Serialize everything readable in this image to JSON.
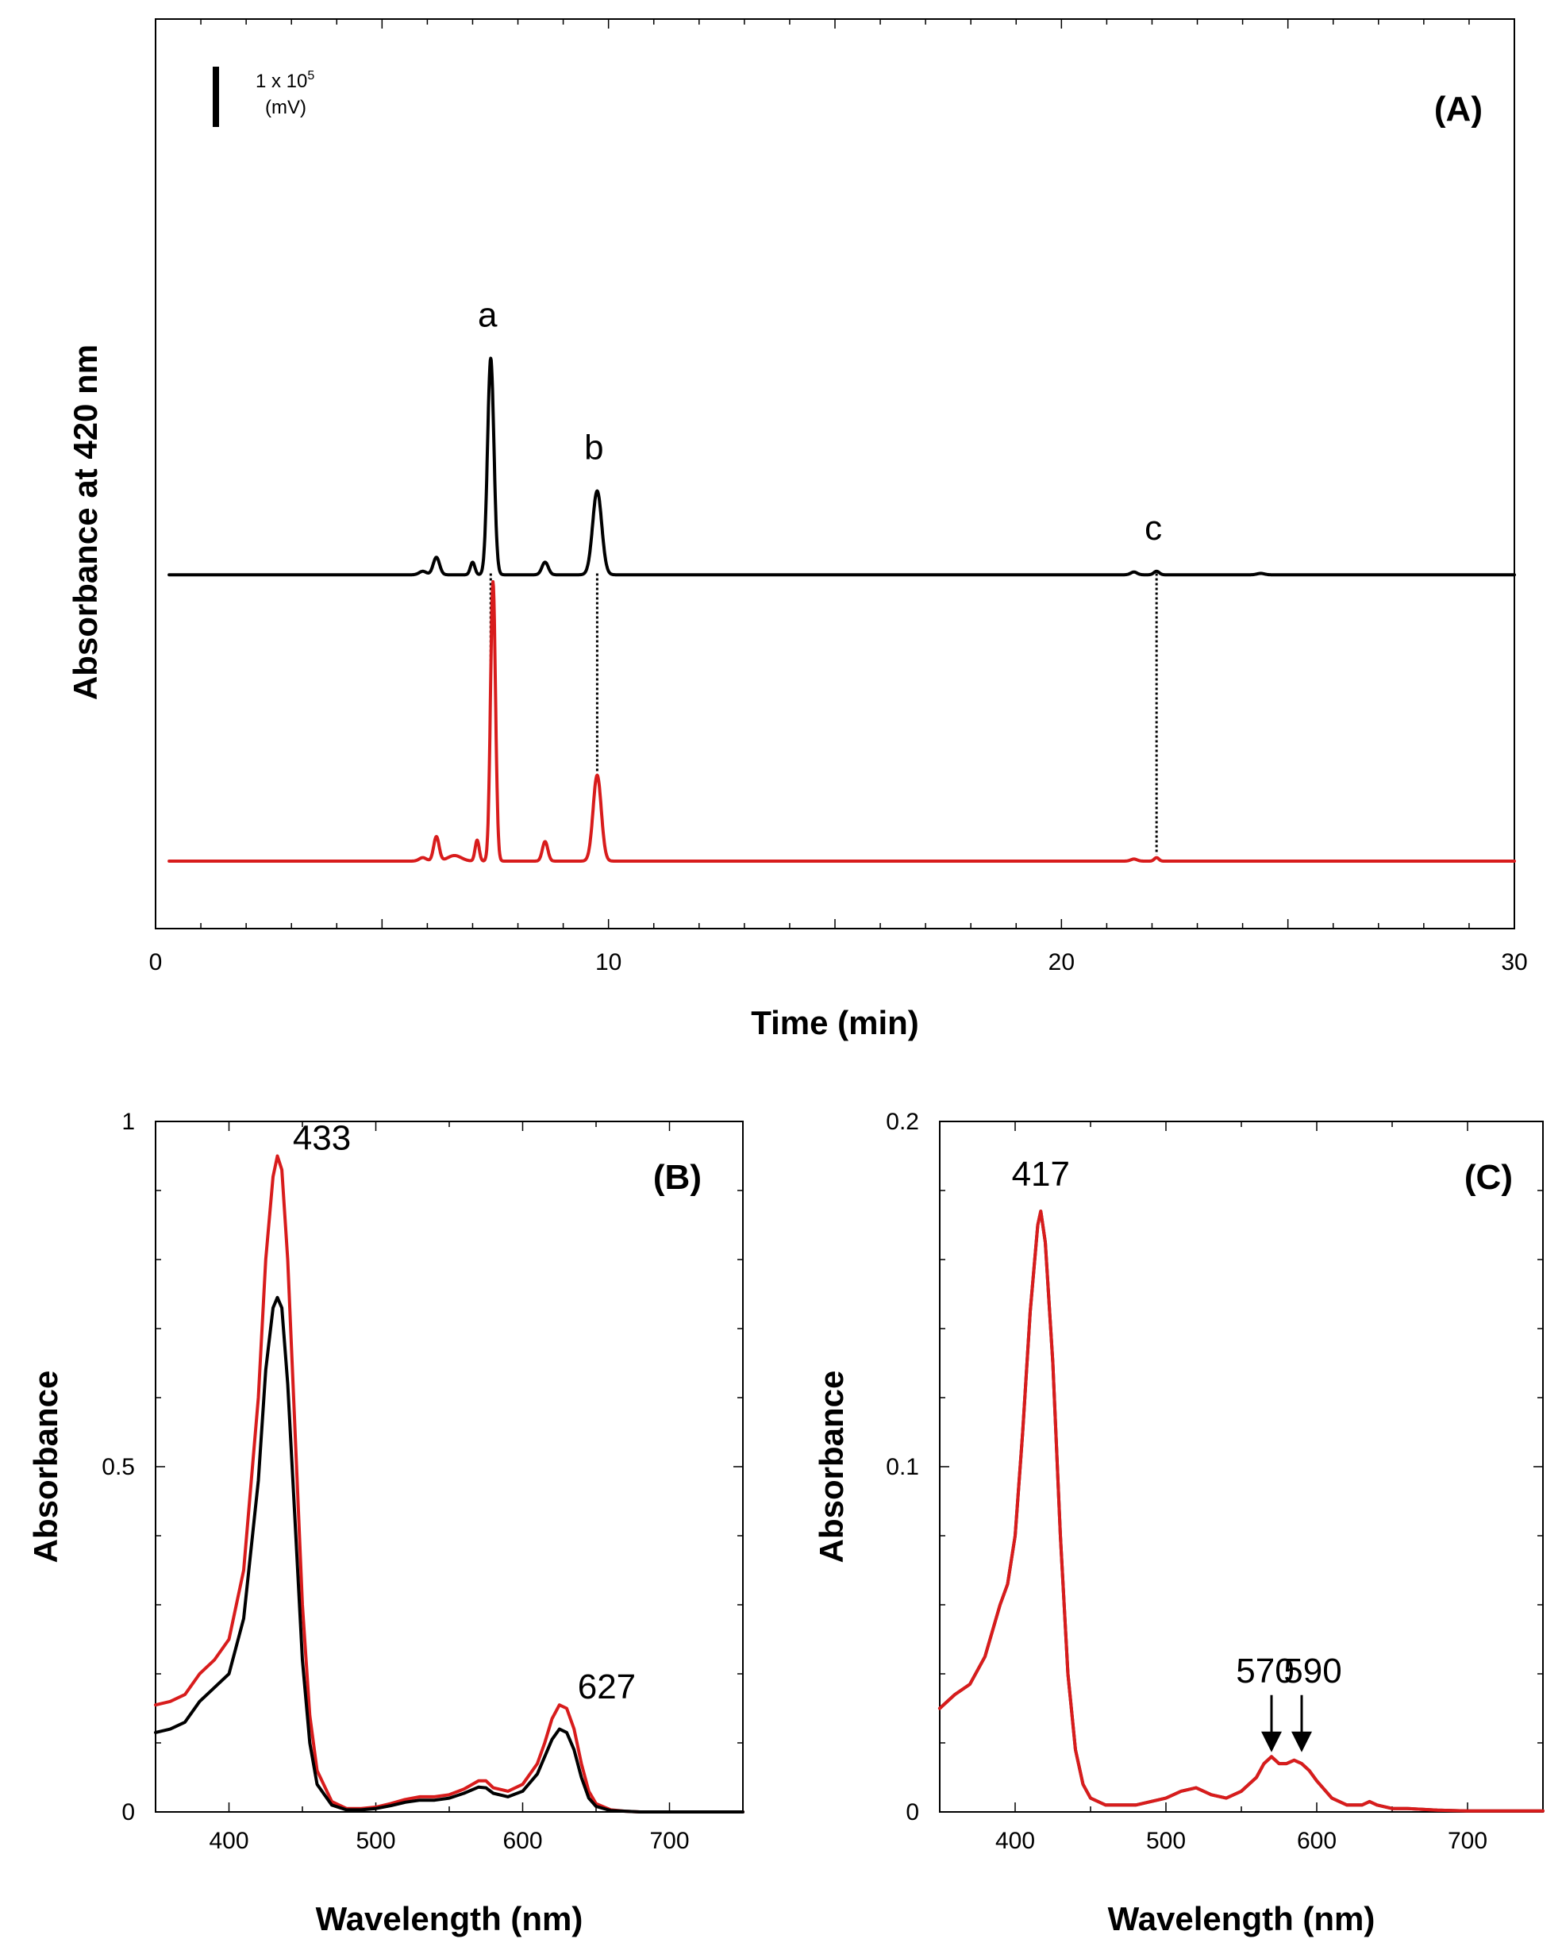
{
  "colors": {
    "control": "#000000",
    "sample": "#d81c1c"
  },
  "chart_data": [
    {
      "id": "A",
      "type": "line",
      "panel_label": "(A)",
      "title": "",
      "xlabel": "Time (min)",
      "ylabel": "Absorbance at 420 nm",
      "xlim": [
        0,
        30
      ],
      "x_ticks": [
        0,
        10,
        20,
        30
      ],
      "scale_bar": {
        "line1": "1 x 10",
        "superscript": "5",
        "line2": "(mV)"
      },
      "peaks": [
        {
          "label": "a",
          "time": 7.4
        },
        {
          "label": "b",
          "time": 9.75
        },
        {
          "label": "c",
          "time": 22.1
        }
      ],
      "series": [
        {
          "name": "black trace",
          "color": "#000000",
          "offset": 4.1,
          "peaks": [
            {
              "t": 5.9,
              "h": 0.05,
              "w": 0.08
            },
            {
              "t": 6.2,
              "h": 0.25,
              "w": 0.07
            },
            {
              "t": 7.0,
              "h": 0.18,
              "w": 0.05
            },
            {
              "t": 7.4,
              "h": 3.1,
              "w": 0.07
            },
            {
              "t": 8.6,
              "h": 0.18,
              "w": 0.07
            },
            {
              "t": 9.75,
              "h": 1.2,
              "w": 0.1
            },
            {
              "t": 21.6,
              "h": 0.04,
              "w": 0.07
            },
            {
              "t": 22.1,
              "h": 0.05,
              "w": 0.06
            },
            {
              "t": 24.4,
              "h": 0.02,
              "w": 0.08
            }
          ]
        },
        {
          "name": "red trace",
          "color": "#d81c1c",
          "offset": 0,
          "peaks": [
            {
              "t": 5.9,
              "h": 0.05,
              "w": 0.08
            },
            {
              "t": 6.2,
              "h": 0.35,
              "w": 0.06
            },
            {
              "t": 6.6,
              "h": 0.08,
              "w": 0.15
            },
            {
              "t": 7.1,
              "h": 0.3,
              "w": 0.045
            },
            {
              "t": 7.45,
              "h": 4.0,
              "w": 0.055
            },
            {
              "t": 8.6,
              "h": 0.28,
              "w": 0.06
            },
            {
              "t": 9.75,
              "h": 1.23,
              "w": 0.09
            },
            {
              "t": 21.6,
              "h": 0.03,
              "w": 0.07
            },
            {
              "t": 22.1,
              "h": 0.05,
              "w": 0.05
            }
          ]
        }
      ]
    },
    {
      "id": "B",
      "type": "line",
      "panel_label": "(B)",
      "title": "",
      "xlabel": "Wavelength (nm)",
      "ylabel": "Absorbance",
      "xlim": [
        350,
        750
      ],
      "ylim": [
        0,
        1
      ],
      "x_ticks": [
        400,
        500,
        600,
        700
      ],
      "y_ticks": [
        0,
        0.5,
        1
      ],
      "y_tick_labels": [
        "0",
        "0.5",
        "1"
      ],
      "peak_labels": [
        {
          "label": "433",
          "x": 433,
          "y": 0.95
        },
        {
          "label": "627",
          "x": 627,
          "y": 0.155
        }
      ],
      "series": [
        {
          "name": "red spectrum",
          "color": "#d81c1c",
          "x": [
            350,
            360,
            370,
            380,
            390,
            400,
            410,
            420,
            425,
            430,
            433,
            436,
            440,
            445,
            450,
            455,
            460,
            470,
            480,
            490,
            500,
            510,
            520,
            530,
            540,
            550,
            560,
            570,
            575,
            580,
            590,
            600,
            610,
            615,
            620,
            625,
            630,
            635,
            640,
            645,
            650,
            660,
            670,
            680,
            700,
            720,
            750
          ],
          "values": [
            0.155,
            0.16,
            0.17,
            0.2,
            0.22,
            0.25,
            0.35,
            0.6,
            0.8,
            0.92,
            0.95,
            0.93,
            0.8,
            0.55,
            0.3,
            0.14,
            0.06,
            0.015,
            0.005,
            0.005,
            0.007,
            0.012,
            0.018,
            0.022,
            0.022,
            0.025,
            0.033,
            0.045,
            0.045,
            0.035,
            0.03,
            0.04,
            0.07,
            0.1,
            0.135,
            0.155,
            0.15,
            0.12,
            0.07,
            0.03,
            0.012,
            0.003,
            0.001,
            0,
            0,
            0,
            0
          ]
        },
        {
          "name": "black spectrum",
          "color": "#000000",
          "x": [
            350,
            360,
            370,
            380,
            390,
            400,
            410,
            420,
            425,
            430,
            433,
            436,
            440,
            445,
            450,
            455,
            460,
            470,
            480,
            490,
            500,
            510,
            520,
            530,
            540,
            550,
            560,
            570,
            575,
            580,
            590,
            600,
            610,
            615,
            620,
            625,
            630,
            635,
            640,
            645,
            650,
            660,
            670,
            680,
            700,
            720,
            750
          ],
          "values": [
            0.115,
            0.12,
            0.13,
            0.16,
            0.18,
            0.2,
            0.28,
            0.48,
            0.64,
            0.73,
            0.745,
            0.73,
            0.62,
            0.42,
            0.22,
            0.1,
            0.04,
            0.01,
            0.003,
            0.003,
            0.005,
            0.009,
            0.014,
            0.017,
            0.017,
            0.02,
            0.027,
            0.036,
            0.035,
            0.027,
            0.022,
            0.03,
            0.055,
            0.08,
            0.105,
            0.12,
            0.115,
            0.09,
            0.05,
            0.02,
            0.008,
            0.002,
            0.001,
            0,
            0,
            0,
            0
          ]
        }
      ]
    },
    {
      "id": "C",
      "type": "line",
      "panel_label": "(C)",
      "title": "",
      "xlabel": "Wavelength (nm)",
      "ylabel": "Absorbance",
      "xlim": [
        350,
        750
      ],
      "ylim": [
        0,
        0.2
      ],
      "x_ticks": [
        400,
        500,
        600,
        700
      ],
      "y_ticks": [
        0,
        0.1,
        0.2
      ],
      "y_tick_labels": [
        "0",
        "0.1",
        "0.2"
      ],
      "peak_labels": [
        {
          "label": "417",
          "x": 417,
          "y": 0.174
        }
      ],
      "arrow_labels": [
        {
          "label": "570",
          "x": 570,
          "y": 0.015
        },
        {
          "label": "590",
          "x": 590,
          "y": 0.015
        }
      ],
      "series": [
        {
          "name": "dark trace",
          "color": "#5a0c0c",
          "x": [
            350,
            360,
            370,
            380,
            390,
            395,
            400,
            405,
            410,
            415,
            417,
            420,
            425,
            430,
            435,
            440,
            445,
            450,
            460,
            470,
            480,
            490,
            500,
            510,
            520,
            525,
            530,
            540,
            550,
            560,
            565,
            570,
            575,
            580,
            585,
            590,
            595,
            600,
            610,
            620,
            630,
            635,
            640,
            650,
            660,
            680,
            700,
            750
          ],
          "values": [
            0.03,
            0.034,
            0.037,
            0.045,
            0.06,
            0.066,
            0.08,
            0.11,
            0.145,
            0.17,
            0.174,
            0.165,
            0.13,
            0.08,
            0.04,
            0.018,
            0.008,
            0.004,
            0.002,
            0.002,
            0.002,
            0.003,
            0.004,
            0.006,
            0.007,
            0.006,
            0.005,
            0.004,
            0.006,
            0.01,
            0.014,
            0.016,
            0.014,
            0.014,
            0.015,
            0.014,
            0.012,
            0.009,
            0.004,
            0.002,
            0.002,
            0.003,
            0.002,
            0.001,
            0.001,
            0.0005,
            0.0003,
            0.0003
          ]
        },
        {
          "name": "red trace",
          "color": "#d81c1c",
          "x": [
            350,
            360,
            370,
            380,
            390,
            395,
            400,
            405,
            410,
            415,
            417,
            420,
            425,
            430,
            435,
            440,
            445,
            450,
            460,
            470,
            480,
            490,
            500,
            510,
            520,
            525,
            530,
            540,
            550,
            560,
            565,
            570,
            575,
            580,
            585,
            590,
            595,
            600,
            610,
            620,
            630,
            635,
            640,
            650,
            660,
            680,
            700,
            750
          ],
          "values": [
            0.03,
            0.034,
            0.037,
            0.045,
            0.06,
            0.066,
            0.08,
            0.11,
            0.145,
            0.17,
            0.174,
            0.165,
            0.13,
            0.08,
            0.04,
            0.018,
            0.008,
            0.004,
            0.002,
            0.002,
            0.002,
            0.003,
            0.004,
            0.006,
            0.007,
            0.006,
            0.005,
            0.004,
            0.006,
            0.01,
            0.014,
            0.016,
            0.014,
            0.014,
            0.015,
            0.014,
            0.012,
            0.009,
            0.004,
            0.002,
            0.002,
            0.003,
            0.002,
            0.001,
            0.001,
            0.0005,
            0.0003,
            0.0003
          ]
        }
      ]
    }
  ]
}
